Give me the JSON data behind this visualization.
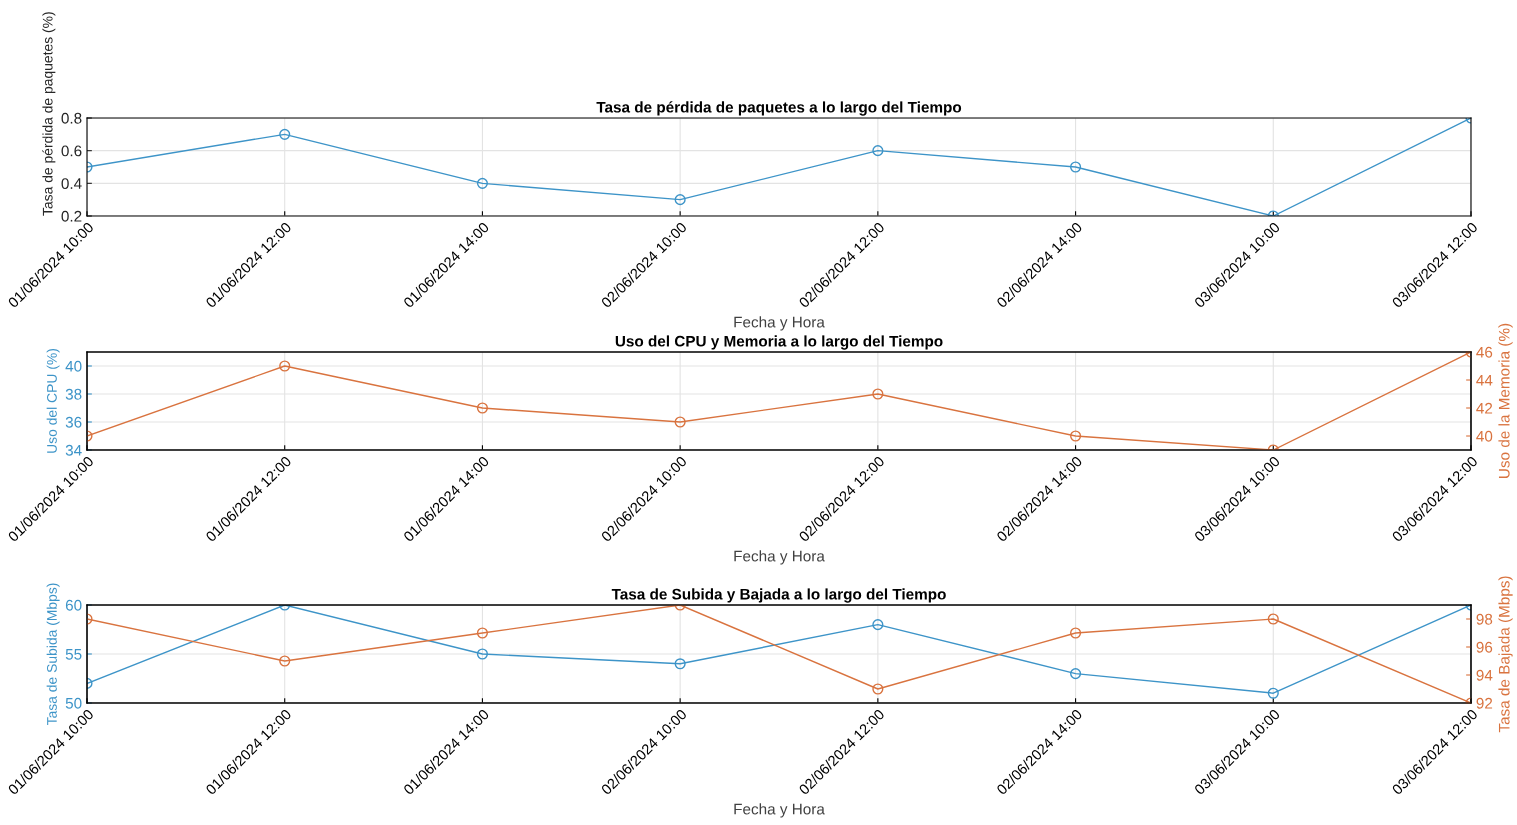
{
  "chart_data": [
    {
      "type": "line",
      "title": "Tasa de pérdida de paquetes a lo largo del Tiempo",
      "xlabel": "Fecha y Hora",
      "ylabel": "Tasa de pérdida de paquetes (%)",
      "categories": [
        "01/06/2024 10:00",
        "01/06/2024 12:00",
        "01/06/2024 14:00",
        "02/06/2024 10:00",
        "02/06/2024 12:00",
        "02/06/2024 14:00",
        "03/06/2024 10:00",
        "03/06/2024 12:00"
      ],
      "series": [
        {
          "color": "#3d94c8",
          "values": [
            0.5,
            0.7,
            0.4,
            0.3,
            0.6,
            0.5,
            0.2,
            0.8
          ]
        }
      ],
      "ylim": [
        0.2,
        0.8
      ],
      "yticks": [
        0.2,
        0.4,
        0.6,
        0.8
      ],
      "grid": true,
      "marker": "circle",
      "line_style": "solid"
    },
    {
      "type": "line",
      "title": "Uso del CPU y Memoria a lo largo del Tiempo",
      "xlabel": "Fecha y Hora",
      "ylabel": "Uso del CPU (%)",
      "y2label": "Uso de la Memoria (%)",
      "categories": [
        "01/06/2024 10:00",
        "01/06/2024 12:00",
        "01/06/2024 14:00",
        "02/06/2024 10:00",
        "02/06/2024 12:00",
        "02/06/2024 14:00",
        "03/06/2024 10:00",
        "03/06/2024 12:00"
      ],
      "series": [
        {
          "color": "#3d94c8",
          "values": [
            null,
            null,
            null,
            null,
            null,
            null,
            null,
            null
          ]
        },
        {
          "color": "#d9733f",
          "axis": "y2",
          "values": [
            40,
            45,
            42,
            41,
            43,
            40,
            39,
            46
          ]
        }
      ],
      "ylim": [
        34,
        41
      ],
      "yticks": [
        34,
        36,
        38,
        40
      ],
      "y2lim": [
        39,
        46
      ],
      "y2ticks": [
        40,
        42,
        44,
        46
      ],
      "grid": true,
      "marker": "circle",
      "line_style": "solid"
    },
    {
      "type": "line",
      "title": "Tasa de Subida y Bajada a lo largo del Tiempo",
      "xlabel": "Fecha y Hora",
      "ylabel": "Tasa de Subida (Mbps)",
      "y2label": "Tasa de Bajada (Mbps)",
      "categories": [
        "01/06/2024 10:00",
        "01/06/2024 12:00",
        "01/06/2024 14:00",
        "02/06/2024 10:00",
        "02/06/2024 12:00",
        "02/06/2024 14:00",
        "03/06/2024 10:00",
        "03/06/2024 12:00"
      ],
      "series": [
        {
          "color": "#3d94c8",
          "values": [
            52,
            60,
            55,
            54,
            58,
            53,
            51,
            60
          ]
        },
        {
          "color": "#d9733f",
          "axis": "y2",
          "values": [
            98,
            95,
            97,
            99,
            93,
            97,
            98,
            92
          ]
        }
      ],
      "ylim": [
        50,
        60
      ],
      "yticks": [
        50,
        55,
        60
      ],
      "y2lim": [
        92,
        99
      ],
      "y2ticks": [
        92,
        94,
        96,
        98
      ],
      "grid": true,
      "marker": "circle",
      "line_style": "solid"
    }
  ]
}
